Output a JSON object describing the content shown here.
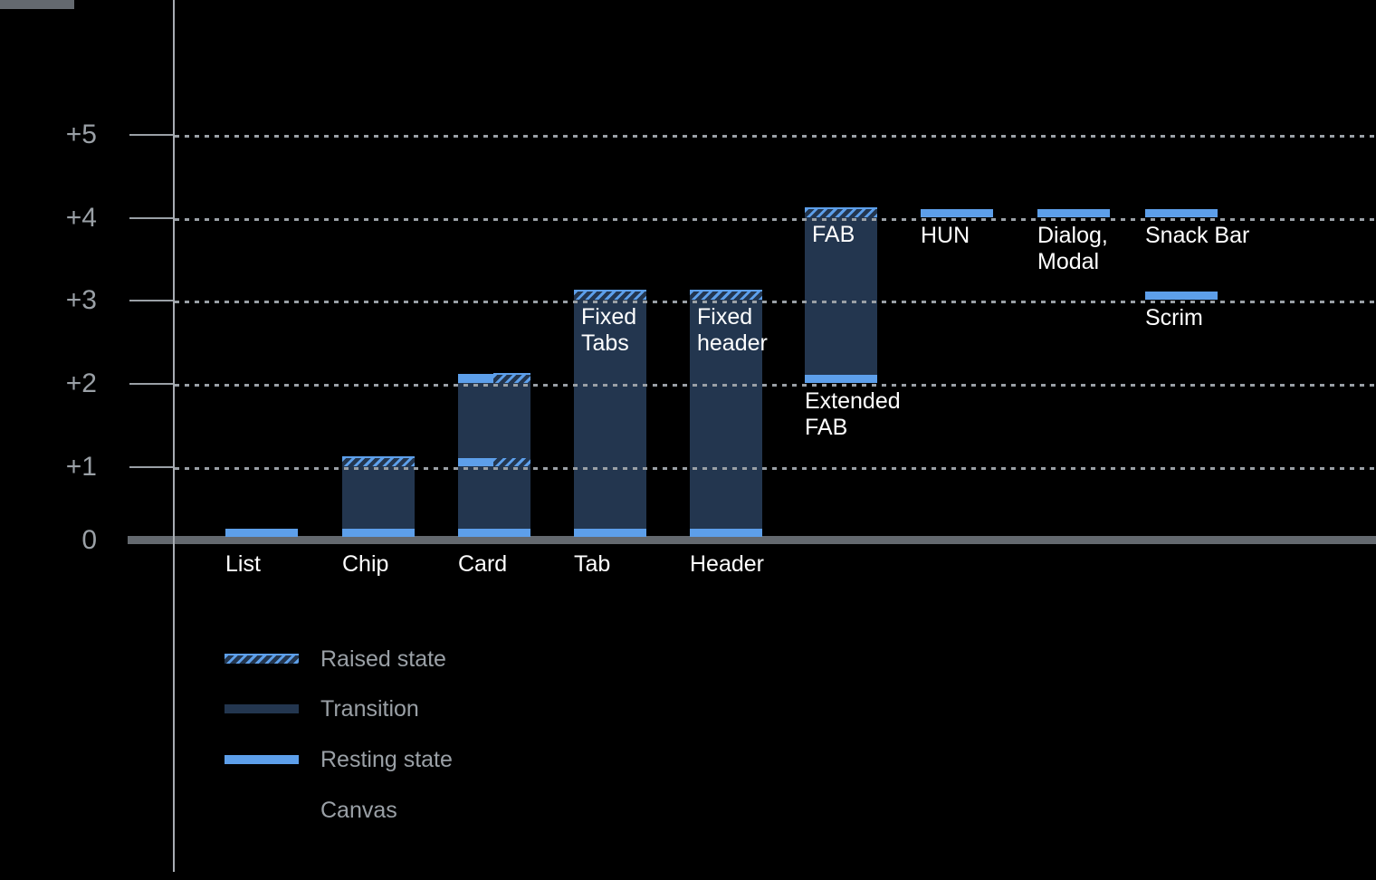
{
  "colors": {
    "background": "#000000",
    "resting": "#5d9fea",
    "transition": "#23364f",
    "canvas": "#64696f",
    "axis_text": "#9aa0a6",
    "axis_line": "#a8adb3",
    "bar_label": "#ffffff"
  },
  "chart_data": {
    "type": "bar",
    "title": "",
    "ylabel": "",
    "y_axis": {
      "levels": [
        5,
        4,
        3,
        2,
        1,
        0
      ],
      "tick_labels": [
        "+5",
        "+4",
        "+3",
        "+2",
        "+1",
        "0"
      ],
      "range": [
        0,
        5
      ],
      "gridlines": "dotted horizontal lines at +1 through +5, solid canvas baseline at 0"
    },
    "columns": [
      {
        "slot": 0,
        "label_lines": [
          "List"
        ],
        "label_position": "baseline",
        "segments": [
          {
            "kind": "resting",
            "level": 0
          }
        ]
      },
      {
        "slot": 1,
        "label_lines": [
          "Chip"
        ],
        "label_position": "baseline",
        "segments": [
          {
            "kind": "resting",
            "level": 0
          },
          {
            "kind": "transition",
            "from": 0,
            "to": 1
          },
          {
            "kind": "raised",
            "level": 1
          }
        ]
      },
      {
        "slot": 2,
        "label_lines": [
          "Card"
        ],
        "label_position": "baseline",
        "segments": [
          {
            "kind": "resting",
            "level": 0
          },
          {
            "kind": "transition",
            "from": 0,
            "to": 1
          },
          {
            "kind": "resting-raised",
            "level": 1
          },
          {
            "kind": "transition",
            "from": 1,
            "to": 2
          },
          {
            "kind": "resting-raised",
            "level": 2
          }
        ]
      },
      {
        "slot": 3,
        "label_lines": [
          "Tab"
        ],
        "label_position": "baseline",
        "inner_label_lines": [
          "Fixed",
          "Tabs"
        ],
        "inner_label_level": 3,
        "segments": [
          {
            "kind": "resting",
            "level": 0
          },
          {
            "kind": "transition",
            "from": 0,
            "to": 3
          },
          {
            "kind": "raised",
            "level": 3
          }
        ]
      },
      {
        "slot": 4,
        "label_lines": [
          "Header"
        ],
        "label_position": "baseline",
        "inner_label_lines": [
          "Fixed",
          "header"
        ],
        "inner_label_level": 3,
        "segments": [
          {
            "kind": "resting",
            "level": 0
          },
          {
            "kind": "transition",
            "from": 0,
            "to": 3
          },
          {
            "kind": "raised",
            "level": 3
          }
        ]
      },
      {
        "slot": 5,
        "label_lines": [
          "Extended",
          "FAB"
        ],
        "label_position": "below-level",
        "label_level": 2,
        "inner_label_lines": [
          "FAB"
        ],
        "inner_label_level": 4,
        "segments": [
          {
            "kind": "resting",
            "level": 2
          },
          {
            "kind": "transition",
            "from": 2,
            "to": 4
          },
          {
            "kind": "raised",
            "level": 4
          }
        ]
      },
      {
        "slot": 6,
        "label_lines": [
          "HUN"
        ],
        "label_position": "below-level",
        "label_level": 4,
        "segments": [
          {
            "kind": "resting",
            "level": 4
          }
        ]
      },
      {
        "slot": 7,
        "label_lines": [
          "Dialog,",
          "Modal"
        ],
        "label_position": "below-level",
        "label_level": 4,
        "segments": [
          {
            "kind": "resting",
            "level": 4
          }
        ]
      },
      {
        "slot": 8,
        "label_lines": [
          "Snack Bar"
        ],
        "label_position": "below-level",
        "label_level": 4,
        "segments": [
          {
            "kind": "resting",
            "level": 4
          }
        ]
      },
      {
        "slot": 8,
        "label_lines": [
          "Scrim"
        ],
        "label_position": "below-level",
        "label_level": 3,
        "segments": [
          {
            "kind": "resting",
            "level": 3
          }
        ]
      }
    ],
    "legend": [
      {
        "swatch": "raised",
        "label": "Raised state"
      },
      {
        "swatch": "transition",
        "label": "Transition"
      },
      {
        "swatch": "resting",
        "label": "Resting state"
      },
      {
        "swatch": "canvas",
        "label": "Canvas"
      }
    ],
    "legend_position": "bottom-left"
  }
}
